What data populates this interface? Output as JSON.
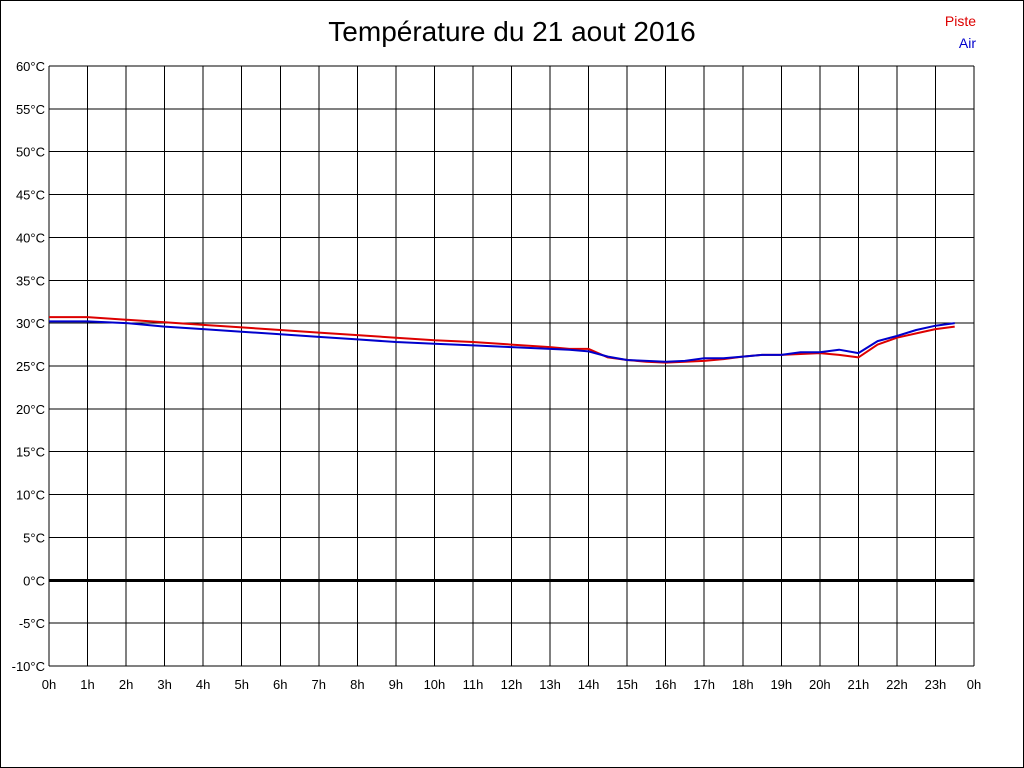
{
  "chart_data": {
    "type": "line",
    "title": "Température du 21 aout 2016",
    "xlabel": "",
    "ylabel": "",
    "x_ticks": [
      "0h",
      "1h",
      "2h",
      "3h",
      "4h",
      "5h",
      "6h",
      "7h",
      "8h",
      "9h",
      "10h",
      "11h",
      "12h",
      "13h",
      "14h",
      "15h",
      "16h",
      "17h",
      "18h",
      "19h",
      "20h",
      "21h",
      "22h",
      "23h",
      "0h"
    ],
    "y_ticks": [
      "60°C",
      "55°C",
      "50°C",
      "45°C",
      "40°C",
      "35°C",
      "30°C",
      "25°C",
      "20°C",
      "15°C",
      "10°C",
      "5°C",
      "0°C",
      "-5°C",
      "-10°C"
    ],
    "xlim": [
      0,
      24
    ],
    "ylim": [
      -10,
      60
    ],
    "grid": true,
    "zero_line": true,
    "legend_position": "top-right",
    "series": [
      {
        "name": "Piste",
        "color": "#dd0000",
        "x": [
          0,
          1,
          2,
          3,
          4,
          5,
          6,
          7,
          8,
          9,
          10,
          11,
          12,
          13,
          13.5,
          14,
          14.5,
          15,
          15.5,
          16,
          16.5,
          17,
          17.5,
          18,
          18.5,
          19,
          19.5,
          20,
          20.5,
          21,
          21.5,
          22,
          22.5,
          23,
          23.5
        ],
        "y": [
          30.7,
          30.7,
          30.4,
          30.1,
          29.8,
          29.5,
          29.2,
          28.9,
          28.6,
          28.3,
          28.0,
          27.8,
          27.5,
          27.2,
          27.0,
          27.0,
          26.0,
          25.7,
          25.5,
          25.4,
          25.5,
          25.6,
          25.8,
          26.1,
          26.3,
          26.3,
          26.4,
          26.5,
          26.3,
          26.0,
          27.5,
          28.3,
          28.8,
          29.3,
          29.6
        ]
      },
      {
        "name": "Air",
        "color": "#0000cc",
        "x": [
          0,
          1,
          2,
          3,
          4,
          5,
          6,
          7,
          8,
          9,
          10,
          11,
          12,
          13,
          13.5,
          14,
          14.5,
          15,
          15.5,
          16,
          16.5,
          17,
          17.5,
          18,
          18.5,
          19,
          19.5,
          20,
          20.5,
          21,
          21.5,
          22,
          22.5,
          23,
          23.5
        ],
        "y": [
          30.2,
          30.2,
          30.0,
          29.6,
          29.3,
          29.0,
          28.7,
          28.4,
          28.1,
          27.8,
          27.6,
          27.4,
          27.2,
          27.0,
          26.9,
          26.7,
          26.1,
          25.7,
          25.6,
          25.5,
          25.6,
          25.9,
          25.9,
          26.1,
          26.3,
          26.3,
          26.6,
          26.6,
          26.9,
          26.5,
          27.9,
          28.5,
          29.2,
          29.7,
          30.0
        ]
      }
    ]
  },
  "legend": {
    "piste": "Piste",
    "air": "Air",
    "piste_color": "#dd0000",
    "air_color": "#0000cc"
  }
}
